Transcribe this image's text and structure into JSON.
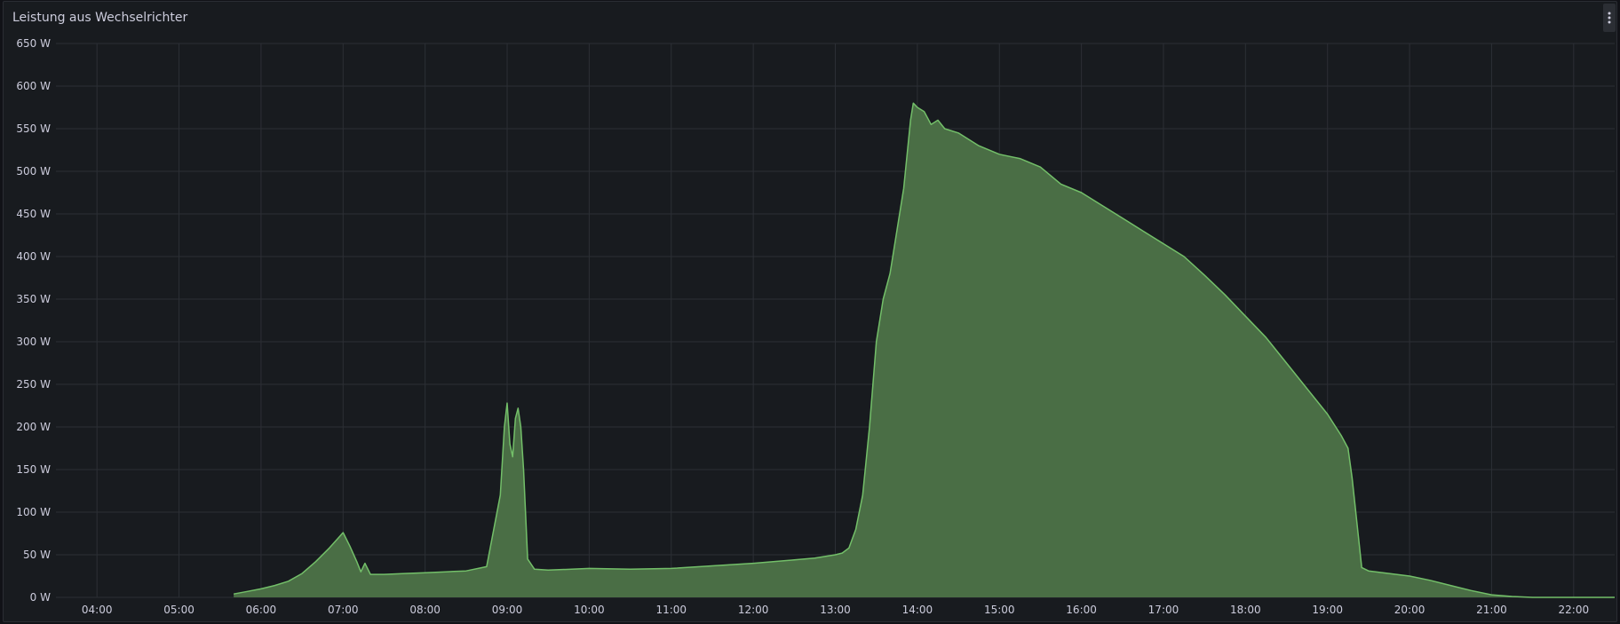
{
  "panel": {
    "title": "Leistung aus Wechselrichter",
    "menu_icon": "kebab-menu-icon"
  },
  "chart_data": {
    "type": "area",
    "title": "Leistung aus Wechselrichter",
    "xlabel": "",
    "ylabel": "",
    "ylim": [
      0,
      650
    ],
    "xlim": [
      "03:30",
      "22:30"
    ],
    "grid": true,
    "y_ticks": [
      "0 W",
      "50 W",
      "100 W",
      "150 W",
      "200 W",
      "250 W",
      "300 W",
      "350 W",
      "400 W",
      "450 W",
      "500 W",
      "550 W",
      "600 W",
      "650 W"
    ],
    "x_ticks": [
      "04:00",
      "05:00",
      "06:00",
      "07:00",
      "08:00",
      "09:00",
      "10:00",
      "11:00",
      "12:00",
      "13:00",
      "14:00",
      "15:00",
      "16:00",
      "17:00",
      "18:00",
      "19:00",
      "20:00",
      "21:00",
      "22:00"
    ],
    "line_color": "#73bf69",
    "fill_color": "#4a6e45",
    "series": [
      {
        "x": [
          "05:40",
          "05:50",
          "06:00",
          "06:10",
          "06:20",
          "06:30",
          "06:40",
          "06:50",
          "07:00",
          "07:05",
          "07:10",
          "07:13",
          "07:16",
          "07:20",
          "07:30",
          "07:45",
          "08:00",
          "08:15",
          "08:30",
          "08:45",
          "08:55",
          "08:58",
          "09:00",
          "09:02",
          "09:04",
          "09:06",
          "09:08",
          "09:10",
          "09:12",
          "09:15",
          "09:20",
          "09:30",
          "10:00",
          "10:30",
          "11:00",
          "11:30",
          "12:00",
          "12:30",
          "12:45",
          "13:00",
          "13:05",
          "13:10",
          "13:15",
          "13:20",
          "13:25",
          "13:30",
          "13:35",
          "13:40",
          "13:45",
          "13:50",
          "13:55",
          "13:57",
          "14:00",
          "14:05",
          "14:10",
          "14:15",
          "14:20",
          "14:30",
          "14:45",
          "15:00",
          "15:15",
          "15:30",
          "15:45",
          "16:00",
          "16:15",
          "16:30",
          "16:45",
          "17:00",
          "17:15",
          "17:30",
          "17:45",
          "18:00",
          "18:15",
          "18:30",
          "18:45",
          "19:00",
          "19:10",
          "19:15",
          "19:18",
          "19:20",
          "19:25",
          "19:30",
          "19:45",
          "20:00",
          "20:15",
          "20:30",
          "20:45",
          "21:00",
          "21:15",
          "21:30",
          "22:00",
          "22:30"
        ],
        "y": [
          4,
          7,
          10,
          14,
          19,
          28,
          42,
          58,
          76,
          60,
          42,
          30,
          40,
          27,
          27,
          28,
          29,
          30,
          31,
          36,
          120,
          200,
          228,
          180,
          165,
          210,
          222,
          200,
          150,
          45,
          33,
          32,
          34,
          33,
          34,
          37,
          40,
          44,
          46,
          50,
          52,
          58,
          80,
          120,
          200,
          300,
          350,
          380,
          430,
          480,
          560,
          580,
          575,
          570,
          555,
          560,
          550,
          545,
          530,
          520,
          515,
          505,
          485,
          475,
          460,
          445,
          430,
          415,
          400,
          378,
          355,
          330,
          305,
          275,
          245,
          215,
          190,
          175,
          140,
          110,
          35,
          31,
          28,
          25,
          20,
          14,
          8,
          3,
          1,
          0,
          0,
          0
        ]
      }
    ]
  }
}
